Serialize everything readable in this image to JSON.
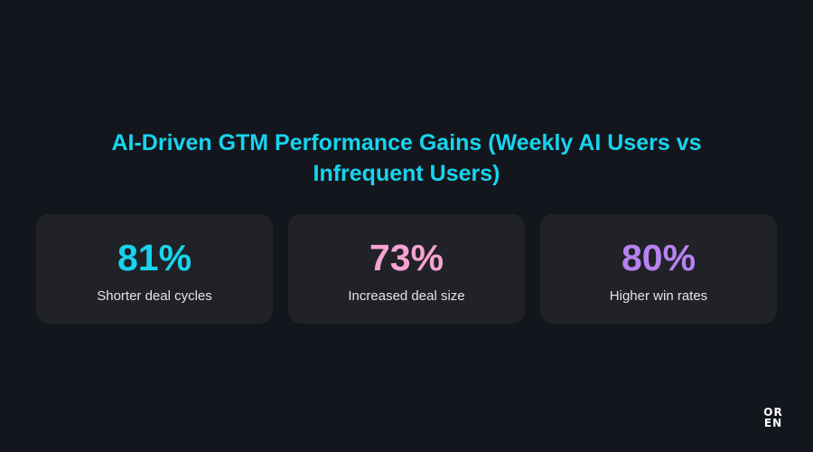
{
  "title": "AI-Driven GTM Performance Gains (Weekly AI Users vs Infrequent Users)",
  "colors": {
    "background": "#14161d",
    "card": "#202227",
    "title": "#17d4ee",
    "label": "#e4e5ea"
  },
  "stats": [
    {
      "value": "81%",
      "label": "Shorter deal cycles",
      "color": "#17d4ee"
    },
    {
      "value": "73%",
      "label": "Increased deal size",
      "color": "#f7a3d2"
    },
    {
      "value": "80%",
      "label": "Higher win rates",
      "color": "#b882f2"
    }
  ],
  "logo": {
    "line1": "OR",
    "line2": "EN"
  }
}
